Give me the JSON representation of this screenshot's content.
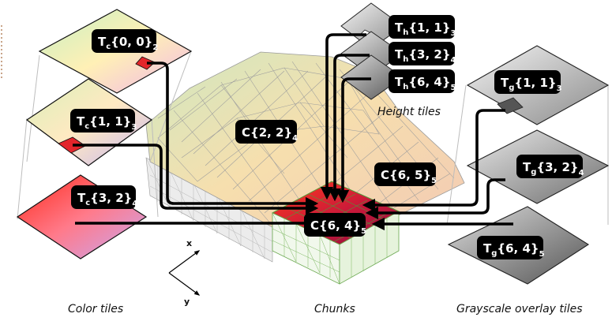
{
  "captions": {
    "color_tiles": "Color tiles",
    "chunks": "Chunks",
    "grayscale_tiles": "Grayscale overlay tiles",
    "height_tiles": "Height tiles"
  },
  "axes": {
    "x": "x",
    "y": "y"
  },
  "labels": {
    "tc00": {
      "prefix": "T",
      "sub": "c",
      "body": "{0, 0}",
      "level": "2"
    },
    "tc11": {
      "prefix": "T",
      "sub": "c",
      "body": "{1, 1}",
      "level": "3"
    },
    "tc32": {
      "prefix": "T",
      "sub": "c",
      "body": "{3, 2}",
      "level": "4"
    },
    "c22": {
      "prefix": "C",
      "sub": "",
      "body": "{2, 2}",
      "level": "4"
    },
    "c65": {
      "prefix": "C",
      "sub": "",
      "body": "{6, 5}",
      "level": "5"
    },
    "c64": {
      "prefix": "C",
      "sub": "",
      "body": "{6, 4}",
      "level": "5"
    },
    "th11": {
      "prefix": "T",
      "sub": "h",
      "body": "{1, 1}",
      "level": "3"
    },
    "th32": {
      "prefix": "T",
      "sub": "h",
      "body": "{3, 2}",
      "level": "4"
    },
    "th64": {
      "prefix": "T",
      "sub": "h",
      "body": "{6, 4}",
      "level": "5"
    },
    "tg11": {
      "prefix": "T",
      "sub": "g",
      "body": "{1, 1}",
      "level": "3"
    },
    "tg32": {
      "prefix": "T",
      "sub": "g",
      "body": "{3, 2}",
      "level": "4"
    },
    "tg64": {
      "prefix": "T",
      "sub": "g",
      "body": "{6, 4}",
      "level": "5"
    }
  }
}
